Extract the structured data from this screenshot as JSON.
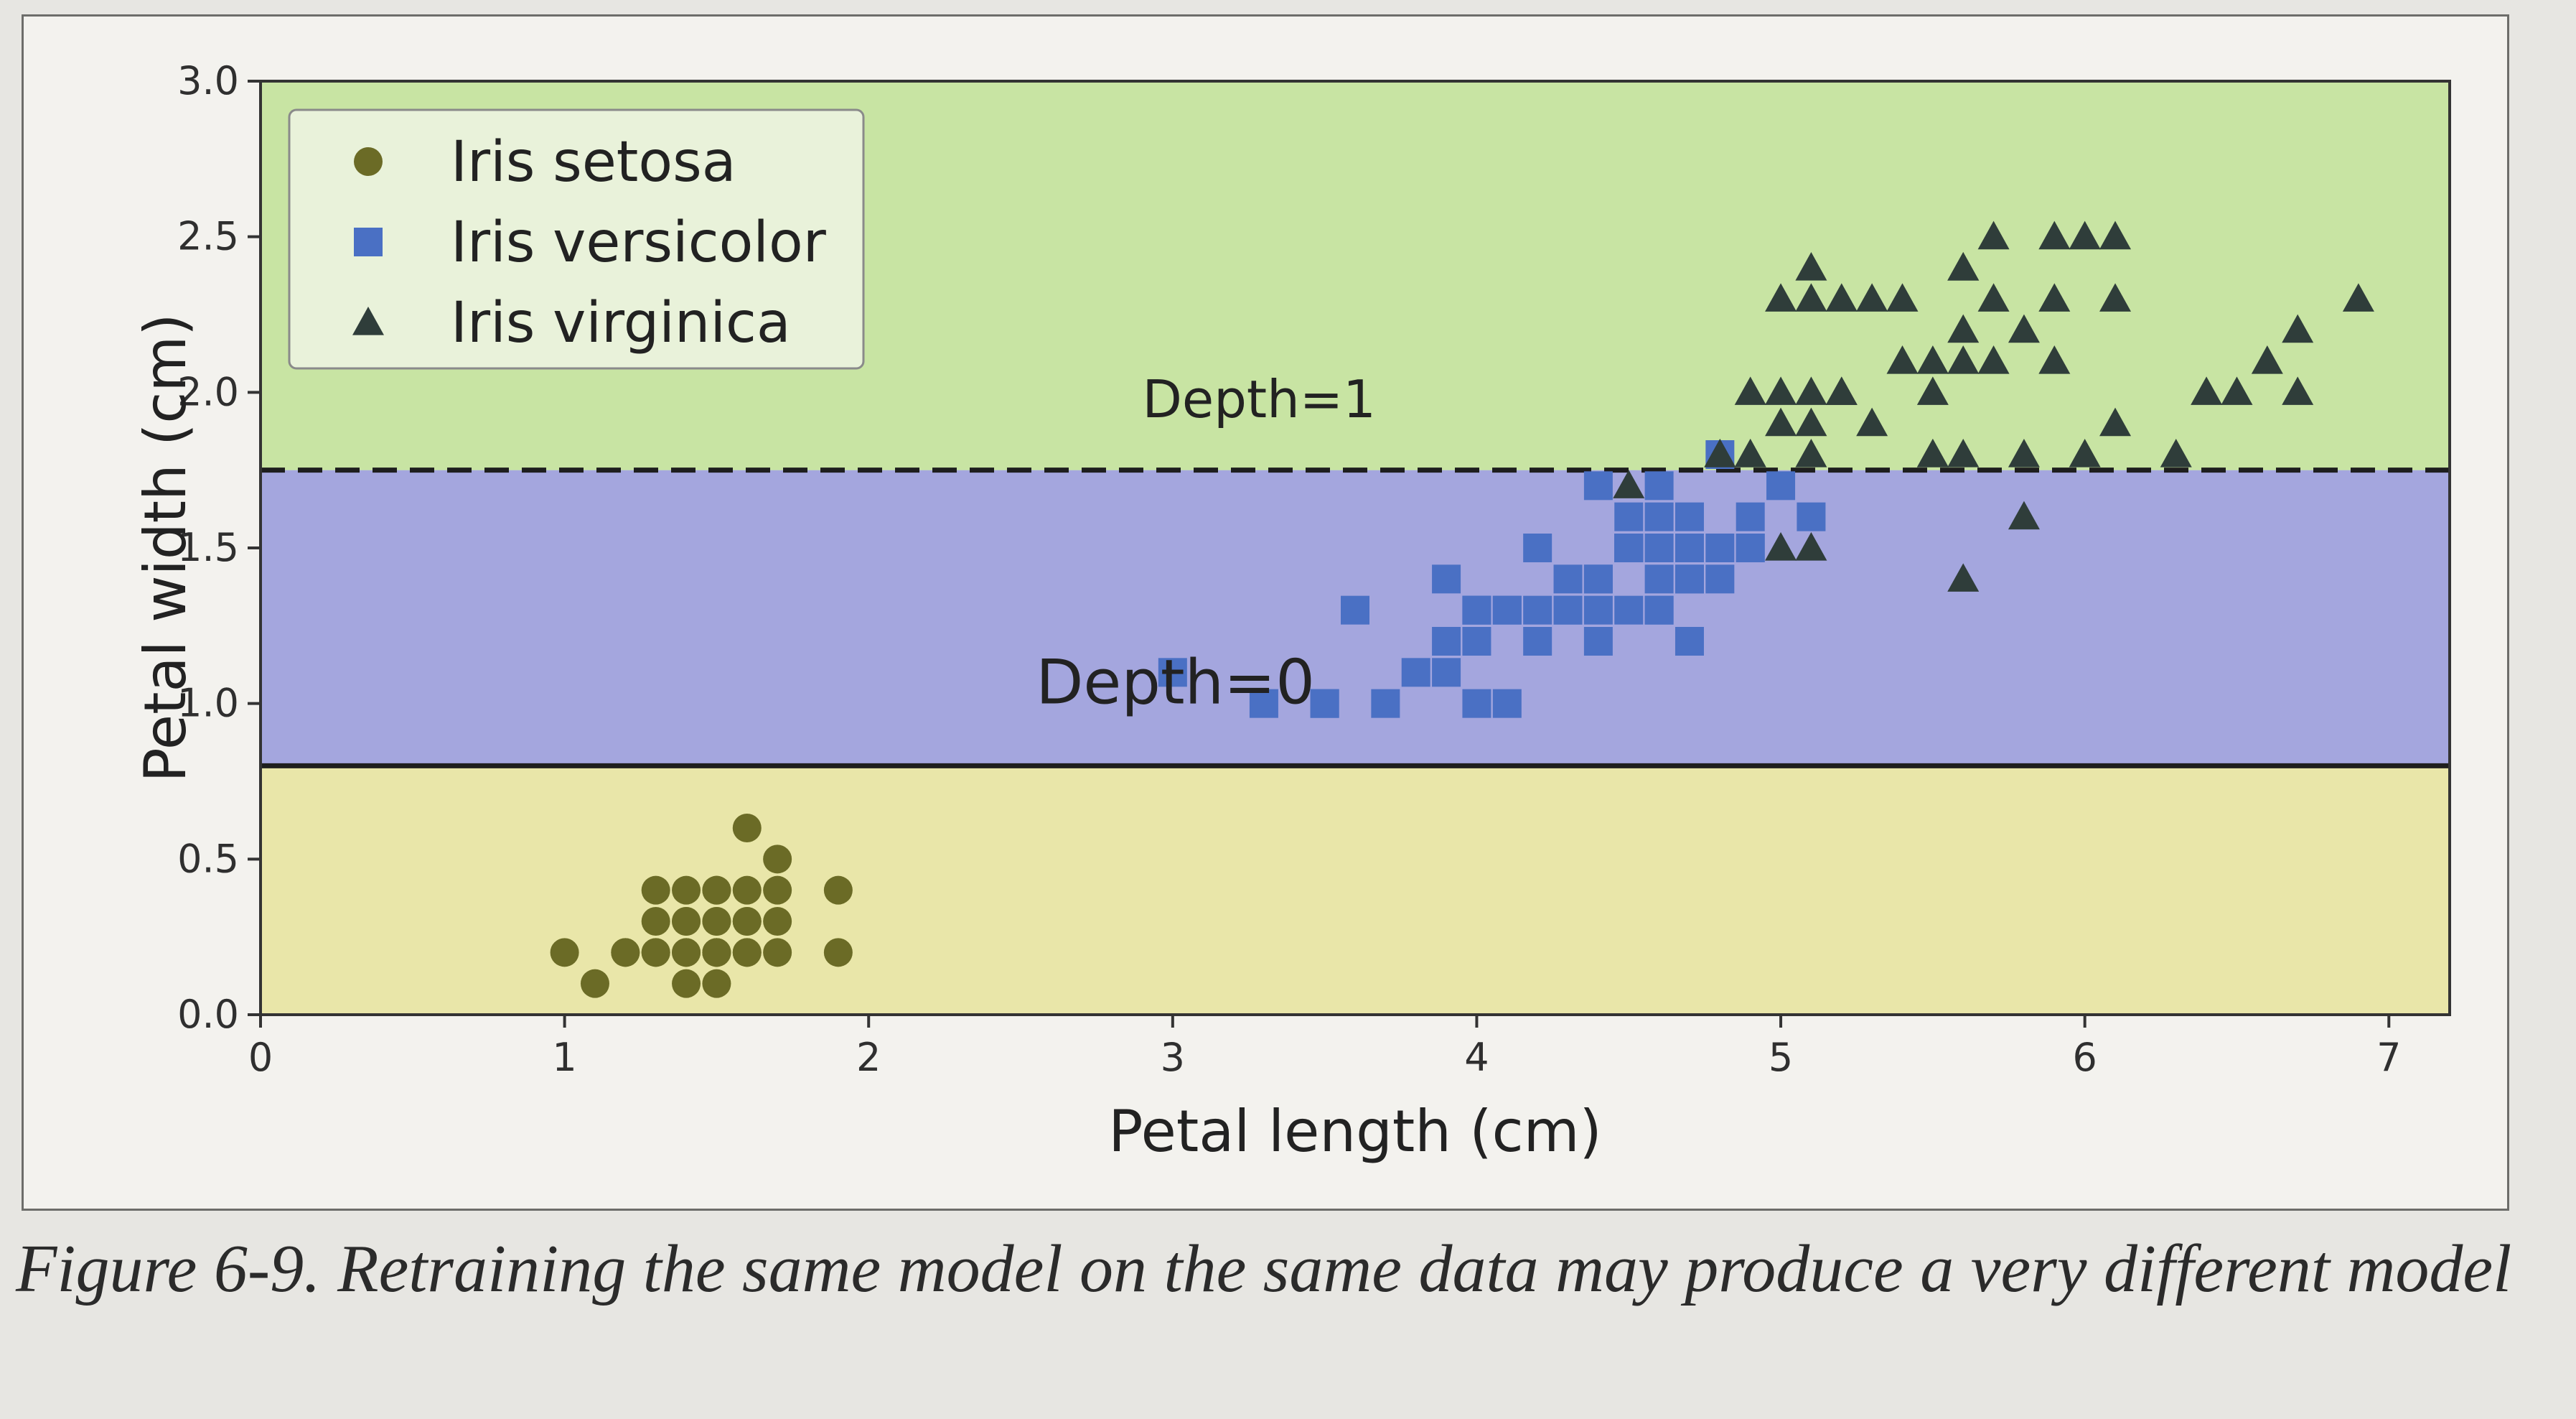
{
  "chart_data": {
    "type": "scatter",
    "title": "",
    "xlabel": "Petal length (cm)",
    "ylabel": "Petal width (cm)",
    "xlim": [
      0,
      7.2
    ],
    "ylim": [
      0,
      3.0
    ],
    "xticks": [
      0,
      1,
      2,
      3,
      4,
      5,
      6,
      7
    ],
    "yticks": [
      0.0,
      0.5,
      1.0,
      1.5,
      2.0,
      2.5,
      3.0
    ],
    "xtick_labels": [
      "0",
      "1",
      "2",
      "3",
      "4",
      "5",
      "6",
      "7"
    ],
    "ytick_labels": [
      "0.0",
      "0.5",
      "1.0",
      "1.5",
      "2.0",
      "2.5",
      "3.0"
    ],
    "grid": false,
    "legend_position": "top-left",
    "regions": [
      {
        "y_from": 0.0,
        "y_to": 0.8,
        "color": "#e9e6a9"
      },
      {
        "y_from": 0.8,
        "y_to": 1.75,
        "color": "#a4a6de"
      },
      {
        "y_from": 1.75,
        "y_to": 3.0,
        "color": "#c8e4a3"
      }
    ],
    "thresholds": [
      {
        "label": "Depth=0",
        "y": 0.8,
        "style": "solid",
        "label_x": 2.55,
        "label_y": 1.0
      },
      {
        "label": "Depth=1",
        "y": 1.75,
        "style": "dashed",
        "label_x": 2.9,
        "label_y": 1.92
      }
    ],
    "series": [
      {
        "name": "Iris setosa",
        "marker": "circle",
        "color": "#6b6b26",
        "points": [
          [
            1.4,
            0.2
          ],
          [
            1.3,
            0.2
          ],
          [
            1.5,
            0.2
          ],
          [
            1.4,
            0.2
          ],
          [
            1.7,
            0.4
          ],
          [
            1.4,
            0.3
          ],
          [
            1.5,
            0.2
          ],
          [
            1.5,
            0.1
          ],
          [
            1.6,
            0.2
          ],
          [
            1.4,
            0.1
          ],
          [
            1.1,
            0.1
          ],
          [
            1.2,
            0.2
          ],
          [
            1.5,
            0.4
          ],
          [
            1.3,
            0.4
          ],
          [
            1.7,
            0.3
          ],
          [
            1.5,
            0.3
          ],
          [
            1.0,
            0.2
          ],
          [
            1.7,
            0.5
          ],
          [
            1.9,
            0.2
          ],
          [
            1.6,
            0.4
          ],
          [
            1.6,
            0.2
          ],
          [
            1.5,
            0.3
          ],
          [
            1.4,
            0.3
          ],
          [
            1.3,
            0.3
          ],
          [
            1.6,
            0.6
          ],
          [
            1.9,
            0.4
          ],
          [
            1.6,
            0.3
          ],
          [
            1.5,
            0.4
          ],
          [
            1.3,
            0.2
          ],
          [
            1.2,
            0.2
          ],
          [
            1.4,
            0.4
          ],
          [
            1.7,
            0.2
          ],
          [
            1.5,
            0.2
          ],
          [
            1.6,
            0.3
          ]
        ]
      },
      {
        "name": "Iris versicolor",
        "marker": "square",
        "color": "#4a70c4",
        "points": [
          [
            4.7,
            1.4
          ],
          [
            4.5,
            1.5
          ],
          [
            4.9,
            1.5
          ],
          [
            4.0,
            1.3
          ],
          [
            4.6,
            1.5
          ],
          [
            4.5,
            1.3
          ],
          [
            4.7,
            1.6
          ],
          [
            3.3,
            1.0
          ],
          [
            4.6,
            1.3
          ],
          [
            3.9,
            1.4
          ],
          [
            3.5,
            1.0
          ],
          [
            4.2,
            1.5
          ],
          [
            4.0,
            1.0
          ],
          [
            4.7,
            1.4
          ],
          [
            3.6,
            1.3
          ],
          [
            4.4,
            1.4
          ],
          [
            4.5,
            1.5
          ],
          [
            4.1,
            1.0
          ],
          [
            4.5,
            1.5
          ],
          [
            3.9,
            1.1
          ],
          [
            4.8,
            1.8
          ],
          [
            4.0,
            1.3
          ],
          [
            4.9,
            1.5
          ],
          [
            4.7,
            1.2
          ],
          [
            4.3,
            1.3
          ],
          [
            4.4,
            1.4
          ],
          [
            4.8,
            1.4
          ],
          [
            5.0,
            1.7
          ],
          [
            4.5,
            1.5
          ],
          [
            3.5,
            1.0
          ],
          [
            3.8,
            1.1
          ],
          [
            3.7,
            1.0
          ],
          [
            3.9,
            1.2
          ],
          [
            5.1,
            1.6
          ],
          [
            4.5,
            1.5
          ],
          [
            4.5,
            1.6
          ],
          [
            4.7,
            1.5
          ],
          [
            4.4,
            1.3
          ],
          [
            4.1,
            1.3
          ],
          [
            4.0,
            1.3
          ],
          [
            4.4,
            1.2
          ],
          [
            4.6,
            1.4
          ],
          [
            4.0,
            1.2
          ],
          [
            3.0,
            1.1
          ],
          [
            4.2,
            1.3
          ],
          [
            4.2,
            1.2
          ],
          [
            4.3,
            1.3
          ],
          [
            4.1,
            1.3
          ],
          [
            4.4,
            1.7
          ],
          [
            4.6,
            1.7
          ],
          [
            4.9,
            1.6
          ],
          [
            4.6,
            1.3
          ],
          [
            4.3,
            1.4
          ],
          [
            4.6,
            1.6
          ],
          [
            4.8,
            1.5
          ]
        ]
      },
      {
        "name": "Iris virginica",
        "marker": "triangle",
        "color": "#2f3d3a",
        "points": [
          [
            6.0,
            2.5
          ],
          [
            5.1,
            1.9
          ],
          [
            5.9,
            2.1
          ],
          [
            5.6,
            1.8
          ],
          [
            5.8,
            2.2
          ],
          [
            6.6,
            2.1
          ],
          [
            4.5,
            1.7
          ],
          [
            6.3,
            1.8
          ],
          [
            5.8,
            1.8
          ],
          [
            6.1,
            2.5
          ],
          [
            5.1,
            2.0
          ],
          [
            5.3,
            1.9
          ],
          [
            5.5,
            2.1
          ],
          [
            5.0,
            2.0
          ],
          [
            5.1,
            2.4
          ],
          [
            5.3,
            2.3
          ],
          [
            5.5,
            1.8
          ],
          [
            6.7,
            2.2
          ],
          [
            6.9,
            2.3
          ],
          [
            5.0,
            1.5
          ],
          [
            5.7,
            2.3
          ],
          [
            4.9,
            2.0
          ],
          [
            6.7,
            2.0
          ],
          [
            4.9,
            1.8
          ],
          [
            5.7,
            2.1
          ],
          [
            6.0,
            1.8
          ],
          [
            4.8,
            1.8
          ],
          [
            4.9,
            1.8
          ],
          [
            5.6,
            2.1
          ],
          [
            5.8,
            1.6
          ],
          [
            6.1,
            1.9
          ],
          [
            6.4,
            2.0
          ],
          [
            5.6,
            2.2
          ],
          [
            5.1,
            1.5
          ],
          [
            5.6,
            1.4
          ],
          [
            6.1,
            2.3
          ],
          [
            5.6,
            2.4
          ],
          [
            5.5,
            1.8
          ],
          [
            4.8,
            1.8
          ],
          [
            5.4,
            2.1
          ],
          [
            5.6,
            2.4
          ],
          [
            5.1,
            2.3
          ],
          [
            5.9,
            2.3
          ],
          [
            5.7,
            2.5
          ],
          [
            5.2,
            2.3
          ],
          [
            5.0,
            1.9
          ],
          [
            5.2,
            2.0
          ],
          [
            5.4,
            2.3
          ],
          [
            5.1,
            1.8
          ],
          [
            5.0,
            2.3
          ],
          [
            5.2,
            2.0
          ],
          [
            5.5,
            2.0
          ],
          [
            6.5,
            2.0
          ],
          [
            5.9,
            2.5
          ]
        ]
      }
    ]
  },
  "caption": {
    "text": "Figure 6-9. Retraining the same model on the same data may produce a very different model"
  }
}
